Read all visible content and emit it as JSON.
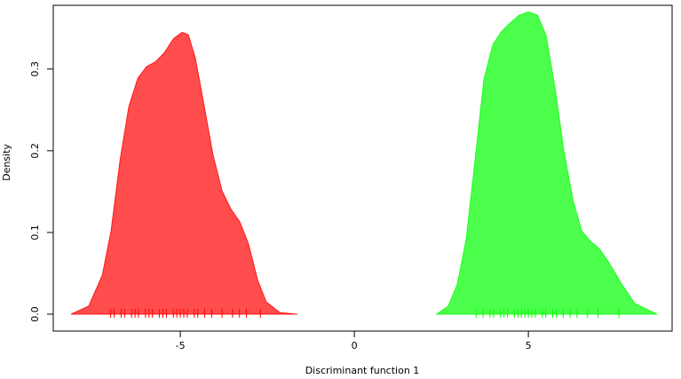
{
  "chart_data": {
    "type": "density",
    "x_label": "Discriminant function 1",
    "y_label": "Density",
    "xlim": [
      -8.65,
      9.13
    ],
    "ylim": [
      -0.0207,
      0.378
    ],
    "xticks": [
      -5,
      0,
      5
    ],
    "yticks": [
      {
        "value": 0,
        "label": "0.0"
      },
      0.1,
      0.2,
      0.3
    ],
    "grid": false,
    "series": [
      {
        "color": "#ff0000",
        "x": [
          -8.14,
          -7.63,
          -7.24,
          -6.99,
          -6.73,
          -6.48,
          -6.22,
          -5.97,
          -5.71,
          -5.46,
          -5.2,
          -4.95,
          -4.77,
          -4.57,
          -4.31,
          -4.06,
          -3.8,
          -3.55,
          -3.29,
          -3.04,
          -2.78,
          -2.53,
          -2.14,
          -1.63
        ],
        "values": [
          0,
          0.01,
          0.048,
          0.102,
          0.189,
          0.254,
          0.289,
          0.303,
          0.309,
          0.32,
          0.337,
          0.345,
          0.342,
          0.314,
          0.254,
          0.195,
          0.151,
          0.129,
          0.113,
          0.086,
          0.042,
          0.015,
          0.002,
          0
        ],
        "rug": [
          -7.0,
          -6.9,
          -6.7,
          -6.6,
          -6.4,
          -6.3,
          -6.2,
          -6.0,
          -5.9,
          -5.8,
          -5.6,
          -5.5,
          -5.4,
          -5.2,
          -5.1,
          -5.0,
          -4.9,
          -4.8,
          -4.6,
          -4.5,
          -4.3,
          -4.1,
          -3.8,
          -3.5,
          -3.3,
          -3.1,
          -2.7
        ]
      },
      {
        "color": "#00ff00",
        "x": [
          2.37,
          2.7,
          2.96,
          3.21,
          3.47,
          3.72,
          3.98,
          4.23,
          4.49,
          4.74,
          5.0,
          5.26,
          5.51,
          5.77,
          6.02,
          6.28,
          6.53,
          6.79,
          7.04,
          7.3,
          7.68,
          8.06,
          8.7
        ],
        "values": [
          0,
          0.01,
          0.037,
          0.091,
          0.189,
          0.287,
          0.33,
          0.346,
          0.357,
          0.366,
          0.37,
          0.366,
          0.341,
          0.276,
          0.2,
          0.14,
          0.102,
          0.089,
          0.08,
          0.064,
          0.037,
          0.013,
          0
        ],
        "rug": [
          3.5,
          3.7,
          3.9,
          4.0,
          4.2,
          4.3,
          4.4,
          4.6,
          4.7,
          4.8,
          4.9,
          5.0,
          5.1,
          5.2,
          5.4,
          5.5,
          5.7,
          5.8,
          6.0,
          6.2,
          6.4,
          6.7,
          7.0,
          7.6
        ]
      }
    ]
  }
}
